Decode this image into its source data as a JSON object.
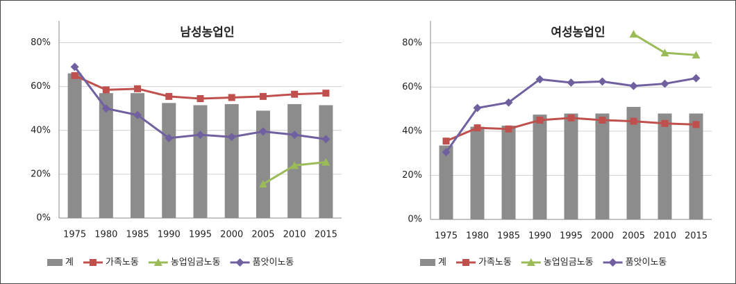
{
  "chart_data": [
    {
      "type": "combo",
      "title": "남성농업인",
      "categories": [
        "1975",
        "1980",
        "1985",
        "1990",
        "1995",
        "2000",
        "2005",
        "2010",
        "2015"
      ],
      "ylim": [
        0,
        90
      ],
      "yticks": [
        {
          "value": 0,
          "label": "0%"
        },
        {
          "value": 20,
          "label": "20%"
        },
        {
          "value": 40,
          "label": "40%"
        },
        {
          "value": 60,
          "label": "60%"
        },
        {
          "value": 80,
          "label": "80%"
        }
      ],
      "grid": true,
      "series": [
        {
          "name": "계",
          "type": "bar",
          "color": "#8c8c8c",
          "values": [
            66,
            57,
            57,
            52.5,
            51.5,
            52,
            49,
            52,
            51.5
          ]
        },
        {
          "name": "가족노동",
          "type": "line",
          "marker": "square",
          "color": "#c0504d",
          "values": [
            65,
            58.5,
            59,
            55.5,
            54.5,
            55,
            55.5,
            56.5,
            57
          ]
        },
        {
          "name": "농업임금노동",
          "type": "line",
          "marker": "triangle",
          "color": "#9bbb59",
          "values": [
            null,
            null,
            null,
            null,
            null,
            null,
            15.5,
            24,
            25.5
          ]
        },
        {
          "name": "품앗이노동",
          "type": "line",
          "marker": "diamond",
          "color": "#7060a0",
          "values": [
            69,
            50,
            47,
            36.5,
            38,
            37,
            39.5,
            38,
            36
          ]
        }
      ]
    },
    {
      "type": "combo",
      "title": "여성농업인",
      "categories": [
        "1975",
        "1980",
        "1985",
        "1990",
        "1995",
        "2000",
        "2005",
        "2010",
        "2015"
      ],
      "ylim": [
        0,
        90
      ],
      "yticks": [
        {
          "value": 0,
          "label": "0%"
        },
        {
          "value": 20,
          "label": "20%"
        },
        {
          "value": 40,
          "label": "40%"
        },
        {
          "value": 60,
          "label": "60%"
        },
        {
          "value": 80,
          "label": "80%"
        }
      ],
      "grid": true,
      "series": [
        {
          "name": "계",
          "type": "bar",
          "color": "#8c8c8c",
          "values": [
            33.5,
            42,
            42.5,
            47.5,
            48,
            48,
            51,
            48,
            48
          ]
        },
        {
          "name": "가족노동",
          "type": "line",
          "marker": "square",
          "color": "#c0504d",
          "values": [
            35.5,
            41.5,
            41,
            45,
            46,
            45,
            44.5,
            43.5,
            43
          ]
        },
        {
          "name": "농업임금노동",
          "type": "line",
          "marker": "triangle",
          "color": "#9bbb59",
          "values": [
            null,
            null,
            null,
            null,
            null,
            null,
            84,
            75.5,
            74.5
          ]
        },
        {
          "name": "품앗이노동",
          "type": "line",
          "marker": "diamond",
          "color": "#7060a0",
          "values": [
            30.5,
            50.5,
            53,
            63.5,
            62,
            62.5,
            60.5,
            61.5,
            64
          ]
        }
      ]
    }
  ]
}
